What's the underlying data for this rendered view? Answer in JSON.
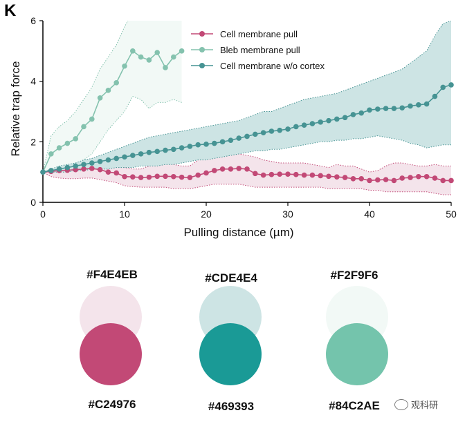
{
  "panel_label": "K",
  "chart_data": {
    "type": "line",
    "xlabel": "Pulling distance (µm)",
    "ylabel": "Relative trap force",
    "xlim": [
      0,
      50
    ],
    "ylim": [
      0,
      6
    ],
    "xticks": [
      0,
      10,
      20,
      30,
      40,
      50
    ],
    "yticks": [
      0,
      2,
      4,
      6
    ],
    "legend_position": "top-right",
    "series": [
      {
        "name": "Cell membrane pull",
        "color": "#C24976",
        "band_color": "#F4E4EB",
        "x": [
          0,
          1,
          2,
          3,
          4,
          5,
          6,
          7,
          8,
          9,
          10,
          11,
          12,
          13,
          14,
          15,
          16,
          17,
          18,
          19,
          20,
          21,
          22,
          23,
          24,
          25,
          26,
          27,
          28,
          29,
          30,
          31,
          32,
          33,
          34,
          35,
          36,
          37,
          38,
          39,
          40,
          41,
          42,
          43,
          44,
          45,
          46,
          47,
          48,
          49,
          50
        ],
        "y": [
          1.0,
          1.02,
          1.05,
          1.06,
          1.08,
          1.1,
          1.12,
          1.08,
          1.0,
          0.97,
          0.85,
          0.84,
          0.82,
          0.83,
          0.86,
          0.86,
          0.85,
          0.83,
          0.82,
          0.9,
          0.97,
          1.05,
          1.1,
          1.1,
          1.12,
          1.1,
          0.95,
          0.9,
          0.92,
          0.93,
          0.93,
          0.92,
          0.9,
          0.9,
          0.88,
          0.86,
          0.84,
          0.82,
          0.78,
          0.78,
          0.72,
          0.74,
          0.75,
          0.72,
          0.8,
          0.82,
          0.85,
          0.85,
          0.8,
          0.72,
          0.72
        ],
        "upper": [
          1.0,
          1.2,
          1.3,
          1.35,
          1.35,
          1.35,
          1.4,
          1.35,
          1.3,
          1.25,
          1.15,
          1.1,
          1.1,
          1.2,
          1.3,
          1.3,
          1.25,
          1.2,
          1.2,
          1.4,
          1.45,
          1.5,
          1.6,
          1.6,
          1.6,
          1.55,
          1.5,
          1.4,
          1.35,
          1.3,
          1.3,
          1.3,
          1.3,
          1.25,
          1.2,
          1.15,
          1.25,
          1.2,
          1.2,
          1.1,
          1.0,
          1.05,
          1.2,
          1.3,
          1.3,
          1.25,
          1.2,
          1.2,
          1.25,
          1.2,
          1.2
        ],
        "lower": [
          1.0,
          0.85,
          0.8,
          0.78,
          0.78,
          0.8,
          0.8,
          0.75,
          0.7,
          0.65,
          0.55,
          0.52,
          0.5,
          0.5,
          0.5,
          0.5,
          0.45,
          0.45,
          0.45,
          0.5,
          0.55,
          0.6,
          0.6,
          0.6,
          0.6,
          0.55,
          0.5,
          0.5,
          0.5,
          0.5,
          0.5,
          0.5,
          0.5,
          0.5,
          0.5,
          0.45,
          0.45,
          0.45,
          0.45,
          0.45,
          0.4,
          0.4,
          0.35,
          0.35,
          0.35,
          0.35,
          0.35,
          0.35,
          0.3,
          0.25,
          0.25
        ]
      },
      {
        "name": "Bleb membrane pull",
        "color": "#84C2AE",
        "band_color": "#F2F9F6",
        "x": [
          0,
          1,
          2,
          3,
          4,
          5,
          6,
          7,
          8,
          9,
          10,
          11,
          12,
          13,
          14,
          15,
          16,
          17
        ],
        "y": [
          1.0,
          1.6,
          1.8,
          1.95,
          2.1,
          2.5,
          2.75,
          3.45,
          3.7,
          3.95,
          4.5,
          5.0,
          4.8,
          4.7,
          4.95,
          4.45,
          4.8,
          5.0
        ],
        "upper": [
          1.0,
          2.2,
          2.5,
          2.7,
          3.0,
          3.4,
          3.8,
          4.4,
          4.8,
          5.2,
          5.8,
          6.3,
          6.5,
          6.5,
          6.5,
          6.3,
          6.2,
          6.2
        ],
        "lower": [
          1.0,
          1.1,
          1.15,
          1.2,
          1.25,
          1.4,
          1.6,
          2.0,
          2.4,
          2.7,
          3.0,
          3.5,
          3.4,
          3.1,
          3.3,
          3.3,
          3.4,
          3.3
        ]
      },
      {
        "name": "Cell membrane w/o cortex",
        "color": "#469393",
        "band_color": "#CDE4E4",
        "x": [
          0,
          1,
          2,
          3,
          4,
          5,
          6,
          7,
          8,
          9,
          10,
          11,
          12,
          13,
          14,
          15,
          16,
          17,
          18,
          19,
          20,
          21,
          22,
          23,
          24,
          25,
          26,
          27,
          28,
          29,
          30,
          31,
          32,
          33,
          34,
          35,
          36,
          37,
          38,
          39,
          40,
          41,
          42,
          43,
          44,
          45,
          46,
          47,
          48,
          49,
          50
        ],
        "y": [
          1.0,
          1.05,
          1.1,
          1.15,
          1.2,
          1.25,
          1.3,
          1.35,
          1.4,
          1.45,
          1.5,
          1.55,
          1.6,
          1.65,
          1.68,
          1.72,
          1.75,
          1.8,
          1.85,
          1.9,
          1.92,
          1.95,
          2.0,
          2.05,
          2.12,
          2.18,
          2.25,
          2.3,
          2.35,
          2.38,
          2.42,
          2.5,
          2.55,
          2.6,
          2.65,
          2.7,
          2.75,
          2.8,
          2.9,
          2.95,
          3.05,
          3.08,
          3.1,
          3.1,
          3.12,
          3.18,
          3.22,
          3.25,
          3.5,
          3.8,
          3.88
        ],
        "upper": [
          1.0,
          1.1,
          1.2,
          1.25,
          1.3,
          1.4,
          1.45,
          1.55,
          1.65,
          1.75,
          1.85,
          1.95,
          2.05,
          2.15,
          2.2,
          2.25,
          2.3,
          2.35,
          2.4,
          2.45,
          2.5,
          2.55,
          2.6,
          2.65,
          2.7,
          2.8,
          2.9,
          3.0,
          3.0,
          3.1,
          3.2,
          3.3,
          3.4,
          3.45,
          3.5,
          3.55,
          3.6,
          3.7,
          3.8,
          3.9,
          4.0,
          4.1,
          4.2,
          4.3,
          4.4,
          4.6,
          4.8,
          5.0,
          5.5,
          5.9,
          6.0
        ],
        "lower": [
          1.0,
          1.0,
          1.0,
          1.0,
          1.05,
          1.05,
          1.1,
          1.1,
          1.1,
          1.15,
          1.15,
          1.15,
          1.2,
          1.2,
          1.2,
          1.25,
          1.25,
          1.3,
          1.35,
          1.4,
          1.4,
          1.45,
          1.5,
          1.55,
          1.6,
          1.65,
          1.7,
          1.7,
          1.75,
          1.75,
          1.8,
          1.85,
          1.9,
          1.95,
          2.0,
          2.0,
          2.05,
          2.05,
          2.1,
          2.1,
          2.15,
          2.2,
          2.15,
          2.1,
          2.05,
          1.95,
          1.9,
          1.8,
          1.85,
          1.9,
          1.9
        ]
      }
    ]
  },
  "swatches": {
    "light": [
      {
        "hex": "#F4E4EB",
        "color": "#F4E4EB"
      },
      {
        "hex": "#CDE4E4",
        "color": "#CDE4E4"
      },
      {
        "hex": "#F2F9F6",
        "color": "#F2F9F6"
      }
    ],
    "dark": [
      {
        "hex": "#C24976",
        "color": "#C24976"
      },
      {
        "hex": "#469393",
        "color": "#1A9A96"
      },
      {
        "hex": "#84C2AE",
        "color": "#74C4AC"
      }
    ]
  },
  "watermark": {
    "text": "观科研",
    "icon": "wechat-icon"
  }
}
